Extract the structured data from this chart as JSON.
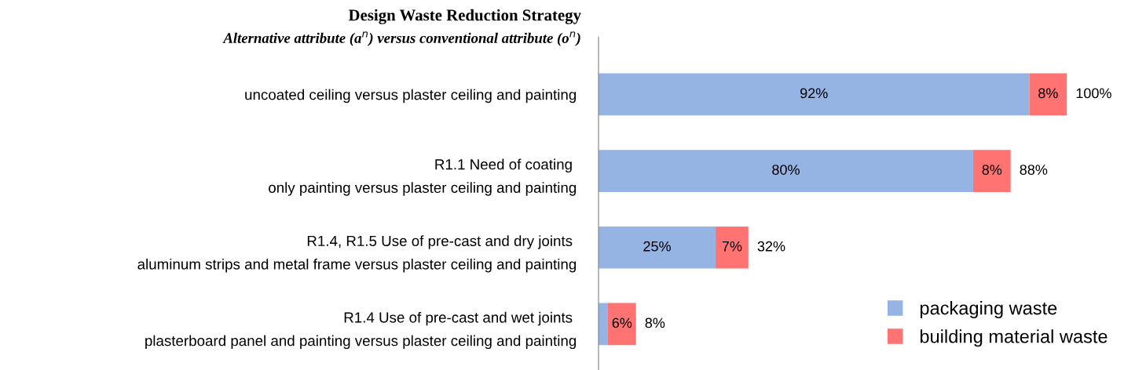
{
  "chart_data": {
    "type": "bar",
    "orientation": "horizontal",
    "stacked": true,
    "title": "Design Waste Reduction Strategy",
    "subtitle": "Alternative attribute (a$^{n}$) versus conventional attribute (o$^{n}$)",
    "categories": [
      "uncoated ceiling versus plaster ceiling and painting",
      "R1.1 Need of coating \nonly painting versus plaster ceiling and painting",
      "R1.4, R1.5 Use of pre-cast and dry joints \naluminum strips and metal frame versus plaster ceiling and painting",
      "R1.4 Use of pre-cast and wet joints \nplasterboard panel and painting versus plaster ceiling and painting"
    ],
    "series": [
      {
        "name": "packaging waste",
        "color": "#95b3e3",
        "values": [
          92,
          80,
          25,
          2
        ],
        "value_labels": [
          "92%",
          "80%",
          "25%",
          null
        ]
      },
      {
        "name": "building material waste",
        "color": "#ff7373",
        "values": [
          8,
          8,
          7,
          6
        ],
        "value_labels": [
          "8%",
          "8%",
          "7%",
          "6%"
        ]
      }
    ],
    "totals": [
      "100%",
      "88%",
      "32%",
      "8%"
    ],
    "tick_labels": "y",
    "grid": false,
    "legend": "bottom right"
  }
}
